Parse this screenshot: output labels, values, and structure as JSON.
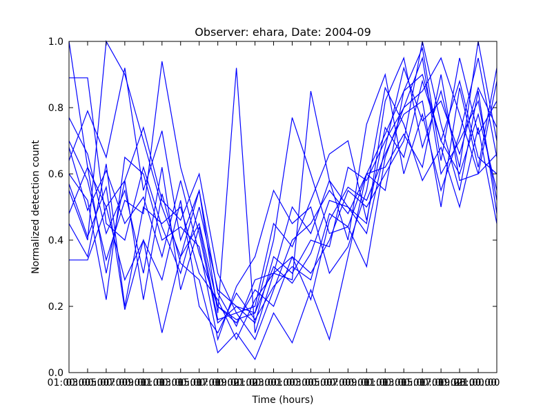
{
  "chart_data": {
    "type": "line",
    "title": "Observer: ehara, Date: 2004-09",
    "xlabel": "Time (hours)",
    "ylabel": "Normalized detection count",
    "x_tick_labels": [
      "01:00:00",
      "03:00:00",
      "05:00:00",
      "07:00:00",
      "09:00:00",
      "11:00:00",
      "13:00:00",
      "15:00:00",
      "17:00:00",
      "19:00:00",
      "21:00:00",
      "23:00:00",
      "01:00:00",
      "03:00:00",
      "05:00:00",
      "07:00:00",
      "09:00:00",
      "11:00:00",
      "13:00:00",
      "15:00:00",
      "17:00:00",
      "19:00:00",
      "21:00:00",
      "23:00:00"
    ],
    "y_tick_labels": [
      "0.0",
      "0.2",
      "0.4",
      "0.6",
      "0.8",
      "1.0"
    ],
    "ylim": [
      0,
      1
    ],
    "grid": false,
    "line_color": "#0000ff",
    "x": [
      "01:00:00",
      "02:00:00",
      "03:00:00",
      "04:00:00",
      "05:00:00",
      "06:00:00",
      "07:00:00",
      "08:00:00",
      "09:00:00",
      "10:00:00",
      "11:00:00",
      "12:00:00",
      "13:00:00",
      "14:00:00",
      "15:00:00",
      "16:00:00",
      "17:00:00",
      "18:00:00",
      "19:00:00",
      "20:00:00",
      "21:00:00",
      "22:00:00",
      "23:00:00",
      "00:00:00"
    ],
    "series": [
      {
        "values": [
          1.0,
          0.62,
          0.5,
          0.58,
          0.74,
          0.52,
          0.46,
          0.6,
          0.3,
          0.18,
          0.1,
          0.25,
          0.4,
          0.45,
          0.55,
          0.48,
          0.6,
          0.72,
          0.85,
          0.9,
          0.7,
          0.88,
          0.65,
          0.6
        ]
      },
      {
        "values": [
          0.89,
          0.89,
          0.45,
          0.4,
          0.62,
          0.44,
          0.3,
          0.5,
          0.25,
          0.2,
          0.15,
          0.35,
          0.3,
          0.4,
          0.38,
          0.62,
          0.58,
          0.7,
          0.8,
          0.95,
          0.6,
          0.7,
          0.82,
          0.52
        ]
      },
      {
        "values": [
          0.64,
          0.79,
          0.65,
          0.92,
          0.55,
          0.73,
          0.4,
          0.55,
          0.18,
          0.92,
          0.12,
          0.3,
          0.5,
          0.42,
          0.58,
          0.5,
          0.45,
          0.82,
          0.95,
          0.68,
          0.85,
          0.62,
          1.0,
          0.7
        ]
      },
      {
        "values": [
          0.55,
          0.4,
          1.0,
          0.9,
          0.7,
          0.5,
          0.35,
          0.45,
          0.2,
          0.15,
          0.25,
          0.2,
          0.35,
          0.3,
          0.4,
          0.55,
          0.5,
          0.6,
          0.7,
          1.0,
          0.75,
          0.55,
          0.85,
          0.48
        ]
      },
      {
        "values": [
          0.7,
          0.58,
          0.34,
          0.52,
          0.48,
          0.94,
          0.62,
          0.42,
          0.15,
          0.2,
          0.18,
          0.4,
          0.77,
          0.6,
          0.42,
          0.44,
          0.32,
          0.65,
          0.8,
          0.85,
          0.95,
          0.78,
          0.6,
          0.88
        ]
      },
      {
        "values": [
          0.45,
          0.35,
          0.63,
          0.2,
          0.5,
          0.45,
          0.5,
          0.3,
          0.22,
          0.1,
          0.22,
          0.3,
          0.28,
          0.85,
          0.58,
          0.4,
          0.75,
          0.9,
          0.6,
          0.78,
          0.55,
          0.72,
          0.95,
          0.65
        ]
      },
      {
        "values": [
          0.6,
          0.52,
          0.22,
          0.65,
          0.6,
          0.4,
          0.44,
          0.38,
          0.1,
          0.26,
          0.35,
          0.55,
          0.45,
          0.5,
          0.3,
          0.38,
          0.55,
          0.86,
          0.75,
          0.58,
          0.68,
          0.5,
          0.74,
          0.45
        ]
      },
      {
        "values": [
          0.34,
          0.34,
          0.5,
          0.28,
          0.4,
          0.12,
          0.35,
          0.55,
          0.24,
          0.14,
          0.28,
          0.3,
          0.35,
          0.22,
          0.46,
          0.56,
          0.52,
          0.66,
          0.78,
          0.82,
          0.5,
          0.86,
          0.62,
          0.92
        ]
      },
      {
        "values": [
          0.77,
          0.66,
          0.42,
          0.55,
          0.3,
          0.62,
          0.25,
          0.44,
          0.16,
          0.18,
          0.2,
          0.45,
          0.38,
          0.52,
          0.66,
          0.7,
          0.46,
          0.74,
          0.65,
          0.88,
          0.7,
          0.6,
          0.78,
          0.55
        ]
      },
      {
        "values": [
          0.48,
          0.62,
          0.3,
          0.58,
          0.22,
          0.54,
          0.33,
          0.28,
          0.06,
          0.12,
          0.04,
          0.18,
          0.09,
          0.25,
          0.1,
          0.35,
          0.6,
          0.55,
          0.85,
          0.98,
          0.64,
          0.95,
          0.72,
          0.82
        ]
      },
      {
        "values": [
          0.57,
          0.41,
          0.56,
          0.19,
          0.4,
          0.28,
          0.52,
          0.2,
          0.12,
          0.24,
          0.16,
          0.26,
          0.32,
          0.28,
          0.48,
          0.44,
          0.6,
          0.62,
          0.72,
          0.62,
          0.9,
          0.58,
          0.6,
          0.66
        ]
      },
      {
        "values": [
          0.68,
          0.49,
          0.61,
          0.45,
          0.53,
          0.35,
          0.58,
          0.36,
          0.2,
          0.16,
          0.18,
          0.32,
          0.27,
          0.36,
          0.52,
          0.5,
          0.42,
          0.68,
          0.92,
          0.76,
          0.82,
          0.66,
          0.86,
          0.74
        ]
      }
    ]
  }
}
